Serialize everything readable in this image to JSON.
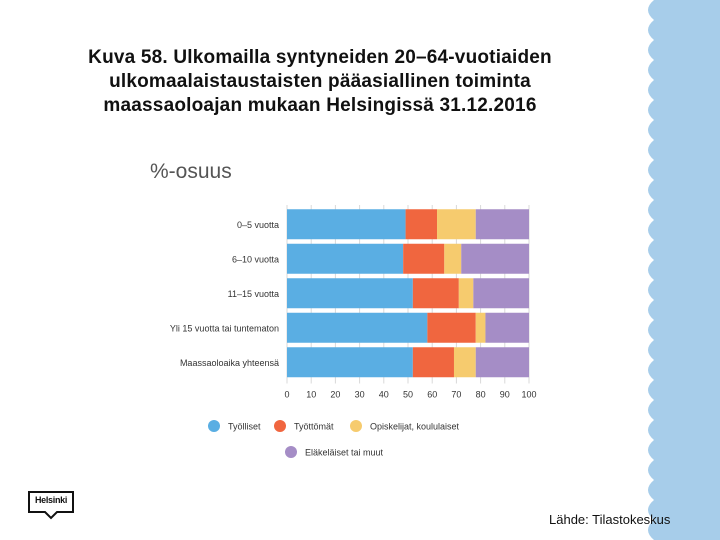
{
  "slide": {
    "title_lines": [
      "Kuva 58. Ulkomailla syntyneiden 20–64-vuotiaiden",
      "ulkomaalaistaustaisten pääasiallinen toiminta",
      "maassaoloajan mukaan Helsingissä 31.12.2016"
    ],
    "source": "Lähde: Tilastokeskus",
    "logo_text": "Helsinki"
  },
  "colors": {
    "decor_band": "#a7cdea"
  },
  "chart_data": {
    "type": "bar",
    "orientation": "horizontal",
    "stacked": true,
    "title": "%-osuus",
    "categories": [
      "0–5 vuotta",
      "6–10 vuotta",
      "11–15 vuotta",
      "Yli 15 vuotta tai tuntematon",
      "Maassaoloaika yhteensä"
    ],
    "series": [
      {
        "name": "Työlliset",
        "color": "#5aaee3",
        "values": [
          49,
          48,
          52,
          58,
          52
        ]
      },
      {
        "name": "Työttömät",
        "color": "#f0663f",
        "values": [
          13,
          17,
          19,
          20,
          17
        ]
      },
      {
        "name": "Opiskelijat, koululaiset",
        "color": "#f6cb6e",
        "values": [
          16,
          7,
          6,
          4,
          9
        ]
      },
      {
        "name": "Eläkeläiset tai muut",
        "color": "#a58dc6",
        "values": [
          22,
          28,
          23,
          18,
          22
        ]
      }
    ],
    "xlim": [
      0,
      100
    ],
    "xticks": [
      "0",
      "10",
      "20",
      "30",
      "40",
      "50",
      "60",
      "70",
      "80",
      "90",
      "100"
    ],
    "grid": true,
    "legend_position": "bottom"
  }
}
